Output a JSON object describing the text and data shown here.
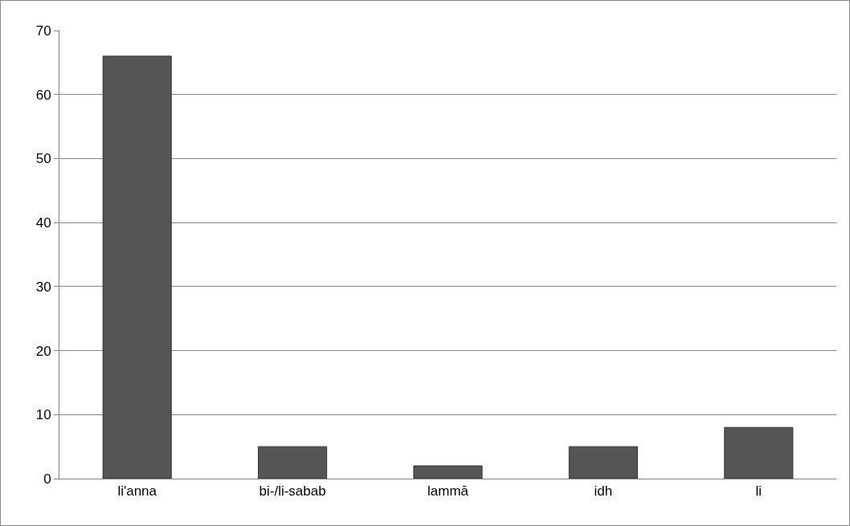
{
  "chart_data": {
    "type": "bar",
    "categories": [
      "li'anna",
      "bi-/li-sabab",
      "lammā",
      "idh",
      "li"
    ],
    "values": [
      66,
      5,
      2,
      5,
      8
    ],
    "color": "#555555",
    "ylim": [
      0,
      70
    ],
    "yticks": [
      0,
      10,
      20,
      30,
      40,
      50,
      60,
      70
    ],
    "grid": "y"
  }
}
